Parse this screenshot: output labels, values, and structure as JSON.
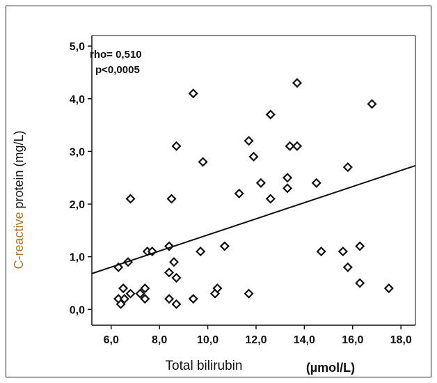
{
  "chart_data": {
    "type": "scatter",
    "xlabel": "Total bilirubin",
    "xlabel_unit": "(µmol/L)",
    "ylabel_colored": "C-reactive",
    "ylabel_rest": "protein (mg/L)",
    "xlim": [
      5.2,
      18.6
    ],
    "ylim": [
      -0.3,
      5.2
    ],
    "x_ticks": [
      6,
      8,
      10,
      12,
      14,
      16,
      18
    ],
    "x_tick_labels": [
      "6,0",
      "8,0",
      "10,0",
      "12,0",
      "14,0",
      "16,0",
      "18,0"
    ],
    "y_ticks": [
      0,
      1,
      2,
      3,
      4,
      5
    ],
    "y_tick_labels": [
      "0,0",
      "1,0",
      "2,0",
      "3,0",
      "4,0",
      "5,0"
    ],
    "annotation": {
      "line1": "rho= 0,510",
      "line2": "p<0,0005"
    },
    "fit_line": {
      "x": [
        5.2,
        18.6
      ],
      "y": [
        0.68,
        2.73
      ]
    },
    "marker": "hollow-diamond",
    "colors": {
      "marker": "#111111",
      "line": "#111111",
      "ylabel_accent": "#b8701d"
    },
    "points": [
      {
        "x": 6.3,
        "y": 0.8
      },
      {
        "x": 6.3,
        "y": 0.2
      },
      {
        "x": 6.4,
        "y": 0.1
      },
      {
        "x": 6.5,
        "y": 0.4
      },
      {
        "x": 6.55,
        "y": 0.2
      },
      {
        "x": 6.7,
        "y": 0.9
      },
      {
        "x": 6.8,
        "y": 2.1
      },
      {
        "x": 6.8,
        "y": 0.3
      },
      {
        "x": 7.2,
        "y": 0.3
      },
      {
        "x": 7.4,
        "y": 0.4
      },
      {
        "x": 7.4,
        "y": 0.2
      },
      {
        "x": 7.5,
        "y": 1.1
      },
      {
        "x": 7.7,
        "y": 1.1
      },
      {
        "x": 8.4,
        "y": 1.2
      },
      {
        "x": 8.4,
        "y": 0.7
      },
      {
        "x": 8.4,
        "y": 0.2
      },
      {
        "x": 8.5,
        "y": 2.1
      },
      {
        "x": 8.6,
        "y": 0.9
      },
      {
        "x": 8.7,
        "y": 3.1
      },
      {
        "x": 8.7,
        "y": 0.6
      },
      {
        "x": 8.7,
        "y": 0.1
      },
      {
        "x": 9.4,
        "y": 4.1
      },
      {
        "x": 9.4,
        "y": 0.2
      },
      {
        "x": 9.7,
        "y": 1.1
      },
      {
        "x": 9.8,
        "y": 2.8
      },
      {
        "x": 10.3,
        "y": 0.3
      },
      {
        "x": 10.4,
        "y": 0.4
      },
      {
        "x": 10.7,
        "y": 1.2
      },
      {
        "x": 11.3,
        "y": 2.2
      },
      {
        "x": 11.7,
        "y": 3.2
      },
      {
        "x": 11.7,
        "y": 0.3
      },
      {
        "x": 11.9,
        "y": 2.9
      },
      {
        "x": 12.2,
        "y": 2.4
      },
      {
        "x": 12.6,
        "y": 3.7
      },
      {
        "x": 12.6,
        "y": 2.1
      },
      {
        "x": 13.3,
        "y": 2.5
      },
      {
        "x": 13.3,
        "y": 2.3
      },
      {
        "x": 13.4,
        "y": 3.1
      },
      {
        "x": 13.7,
        "y": 4.3
      },
      {
        "x": 13.7,
        "y": 3.1
      },
      {
        "x": 14.5,
        "y": 2.4
      },
      {
        "x": 14.7,
        "y": 1.1
      },
      {
        "x": 15.6,
        "y": 1.1
      },
      {
        "x": 15.8,
        "y": 2.7
      },
      {
        "x": 15.8,
        "y": 0.8
      },
      {
        "x": 16.3,
        "y": 1.2
      },
      {
        "x": 16.3,
        "y": 0.5
      },
      {
        "x": 16.8,
        "y": 3.9
      },
      {
        "x": 17.5,
        "y": 0.4
      }
    ]
  }
}
